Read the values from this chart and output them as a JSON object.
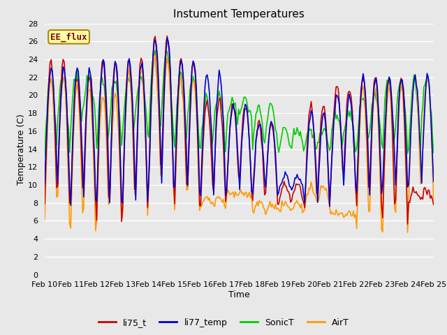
{
  "title": "Instument Temperatures",
  "xlabel": "Time",
  "ylabel": "Temperature (C)",
  "ylim": [
    0,
    28
  ],
  "yticks": [
    0,
    2,
    4,
    6,
    8,
    10,
    12,
    14,
    16,
    18,
    20,
    22,
    24,
    26,
    28
  ],
  "xtick_labels": [
    "Feb 10",
    "Feb 11",
    "Feb 12",
    "Feb 13",
    "Feb 14",
    "Feb 15",
    "Feb 16",
    "Feb 17",
    "Feb 18",
    "Feb 19",
    "Feb 20",
    "Feb 21",
    "Feb 22",
    "Feb 23",
    "Feb 24",
    "Feb 25"
  ],
  "colors": {
    "li75_t": "#cc0000",
    "li77_temp": "#0000cc",
    "SonicT": "#00cc00",
    "AirT": "#ff9900"
  },
  "legend_label": "EE_flux",
  "background_color": "#e8e8e8",
  "plot_bg_color": "#e8e8e8",
  "grid_color": "#ffffff",
  "figsize": [
    6.4,
    4.8
  ],
  "dpi": 100,
  "legend_box_facecolor": "#ffffaa",
  "legend_box_edgecolor": "#aa8800",
  "legend_box_textcolor": "#880000"
}
